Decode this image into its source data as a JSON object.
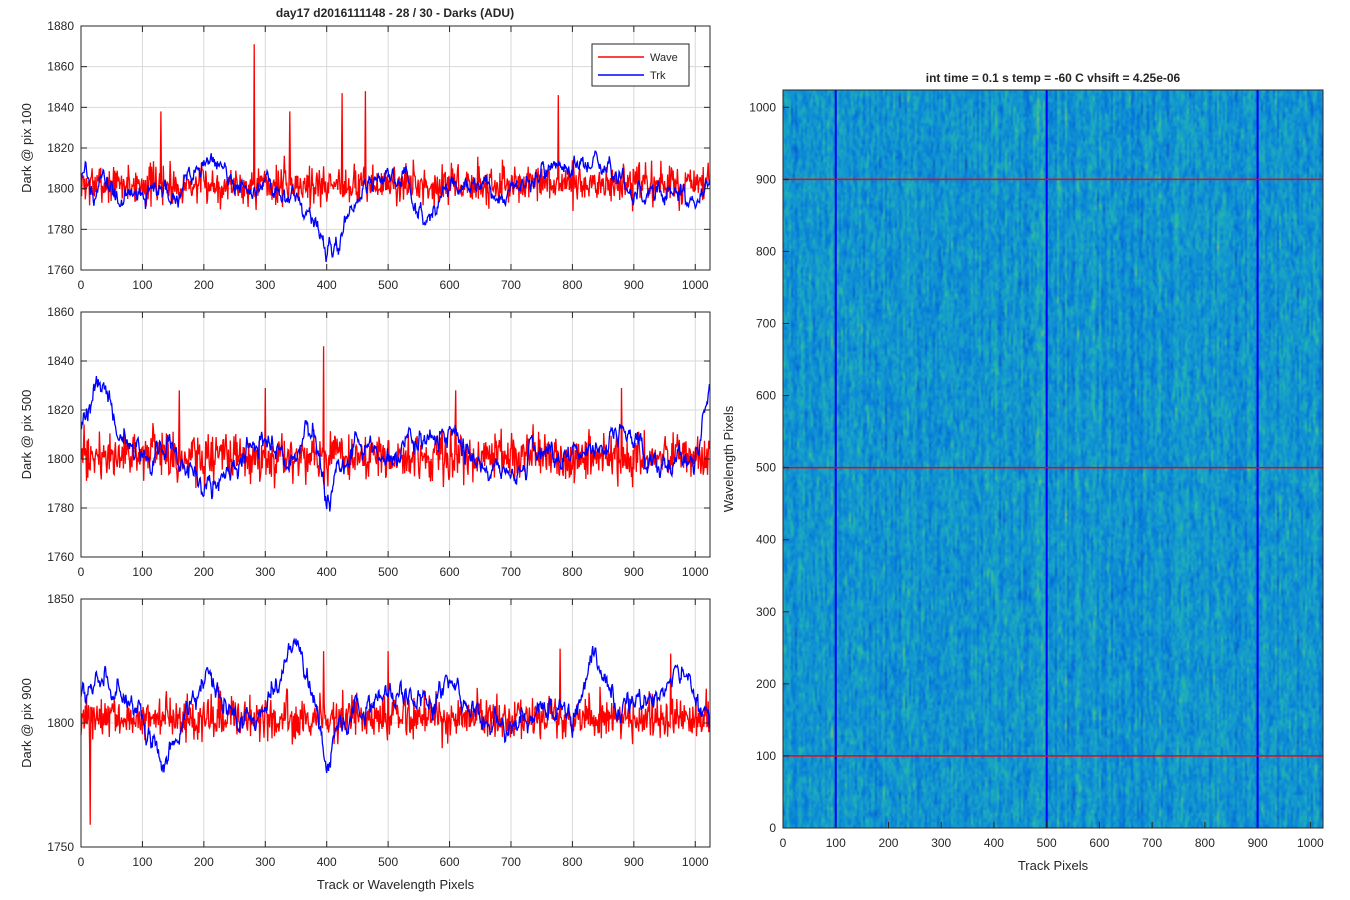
{
  "figure_title": "day17 d2016111148 - 28 / 30 - Darks (ADU)",
  "colors": {
    "wave": "#ff0000",
    "trk": "#0000ff",
    "axis": "#262626",
    "grid": "#d9d9d9"
  },
  "chart_data": [
    {
      "type": "line",
      "name": "dark-pix-100",
      "ylabel": "Dark @ pix 100",
      "xlabel": "",
      "xlim": [
        0,
        1024
      ],
      "ylim": [
        1760,
        1880
      ],
      "xticks": [
        0,
        100,
        200,
        300,
        400,
        500,
        600,
        700,
        800,
        900,
        1000
      ],
      "yticks": [
        1760,
        1780,
        1800,
        1820,
        1840,
        1860,
        1880
      ],
      "grid": true,
      "legend": {
        "placement": "top-right",
        "entries": [
          "Wave",
          "Trk"
        ]
      },
      "series": [
        {
          "name": "Wave",
          "color": "#ff0000",
          "mean": 1802,
          "noise": 9,
          "spikes": [
            [
              282,
              1871
            ],
            [
              425,
              1847
            ],
            [
              463,
              1848
            ],
            [
              777,
              1846
            ],
            [
              130,
              1838
            ],
            [
              340,
              1838
            ]
          ]
        },
        {
          "name": "Trk",
          "color": "#0000ff",
          "mean": 1800,
          "trend": [
            [
              0,
              1805
            ],
            [
              40,
              1800
            ],
            [
              80,
              1796
            ],
            [
              120,
              1798
            ],
            [
              160,
              1800
            ],
            [
              200,
              1815
            ],
            [
              230,
              1816
            ],
            [
              260,
              1796
            ],
            [
              300,
              1800
            ],
            [
              350,
              1796
            ],
            [
              400,
              1772
            ],
            [
              430,
              1778
            ],
            [
              460,
              1800
            ],
            [
              500,
              1806
            ],
            [
              530,
              1806
            ],
            [
              560,
              1782
            ],
            [
              600,
              1804
            ],
            [
              650,
              1800
            ],
            [
              700,
              1798
            ],
            [
              750,
              1808
            ],
            [
              800,
              1812
            ],
            [
              840,
              1816
            ],
            [
              880,
              1800
            ],
            [
              930,
              1800
            ],
            [
              1000,
              1796
            ],
            [
              1024,
              1806
            ]
          ]
        }
      ]
    },
    {
      "type": "line",
      "name": "dark-pix-500",
      "ylabel": "Dark @ pix 500",
      "xlabel": "",
      "xlim": [
        0,
        1024
      ],
      "ylim": [
        1760,
        1860
      ],
      "xticks": [
        0,
        100,
        200,
        300,
        400,
        500,
        600,
        700,
        800,
        900,
        1000
      ],
      "yticks": [
        1760,
        1780,
        1800,
        1820,
        1840,
        1860
      ],
      "grid": true,
      "series": [
        {
          "name": "Wave",
          "color": "#ff0000",
          "mean": 1801,
          "noise": 9,
          "spikes": [
            [
              395,
              1846
            ],
            [
              300,
              1829
            ],
            [
              160,
              1828
            ],
            [
              610,
              1828
            ],
            [
              880,
              1829
            ]
          ]
        },
        {
          "name": "Trk",
          "color": "#0000ff",
          "mean": 1800,
          "trend": [
            [
              0,
              1810
            ],
            [
              30,
              1834
            ],
            [
              60,
              1812
            ],
            [
              100,
              1800
            ],
            [
              150,
              1806
            ],
            [
              200,
              1790
            ],
            [
              240,
              1796
            ],
            [
              300,
              1806
            ],
            [
              340,
              1800
            ],
            [
              380,
              1812
            ],
            [
              400,
              1782
            ],
            [
              450,
              1806
            ],
            [
              500,
              1798
            ],
            [
              550,
              1806
            ],
            [
              600,
              1810
            ],
            [
              650,
              1798
            ],
            [
              700,
              1796
            ],
            [
              750,
              1804
            ],
            [
              800,
              1800
            ],
            [
              850,
              1806
            ],
            [
              900,
              1810
            ],
            [
              950,
              1796
            ],
            [
              1000,
              1798
            ],
            [
              1024,
              1828
            ]
          ]
        }
      ]
    },
    {
      "type": "line",
      "name": "dark-pix-900",
      "ylabel": "Dark @ pix 900",
      "xlabel": "Track or Wavelength Pixels",
      "xlim": [
        0,
        1024
      ],
      "ylim": [
        1750,
        1850
      ],
      "xticks": [
        0,
        100,
        200,
        300,
        400,
        500,
        600,
        700,
        800,
        900,
        1000
      ],
      "yticks": [
        1750,
        1800,
        1850
      ],
      "grid": true,
      "series": [
        {
          "name": "Wave",
          "color": "#ff0000",
          "mean": 1802,
          "noise": 8,
          "spikes": [
            [
              15,
              1759
            ],
            [
              395,
              1829
            ],
            [
              500,
              1829
            ],
            [
              780,
              1830
            ],
            [
              960,
              1828
            ]
          ]
        },
        {
          "name": "Trk",
          "color": "#0000ff",
          "mean": 1805,
          "trend": [
            [
              0,
              1810
            ],
            [
              40,
              1818
            ],
            [
              100,
              1800
            ],
            [
              140,
              1782
            ],
            [
              200,
              1818
            ],
            [
              260,
              1800
            ],
            [
              300,
              1806
            ],
            [
              350,
              1834
            ],
            [
              400,
              1790
            ],
            [
              450,
              1804
            ],
            [
              500,
              1812
            ],
            [
              550,
              1808
            ],
            [
              600,
              1816
            ],
            [
              650,
              1800
            ],
            [
              700,
              1794
            ],
            [
              750,
              1808
            ],
            [
              800,
              1800
            ],
            [
              830,
              1826
            ],
            [
              860,
              1810
            ],
            [
              900,
              1806
            ],
            [
              940,
              1812
            ],
            [
              980,
              1822
            ],
            [
              1024,
              1800
            ]
          ]
        }
      ]
    },
    {
      "type": "heatmap",
      "name": "dark-image",
      "title": "int time = 0.1 s   temp = -60 C   vhsift = 4.25e-06",
      "xlabel": "Track Pixels",
      "ylabel": "Wavelength Pixels",
      "xlim": [
        0,
        1024
      ],
      "ylim": [
        0,
        1024
      ],
      "xticks": [
        0,
        100,
        200,
        300,
        400,
        500,
        600,
        700,
        800,
        900,
        1000
      ],
      "yticks": [
        0,
        100,
        200,
        300,
        400,
        500,
        600,
        700,
        800,
        900,
        1000
      ],
      "colormap": "parula",
      "vlines": {
        "color": "#0000ff",
        "x": [
          100,
          500,
          900
        ]
      },
      "hlines": {
        "color": "#ff0000",
        "y": [
          100,
          500,
          900
        ]
      }
    }
  ]
}
